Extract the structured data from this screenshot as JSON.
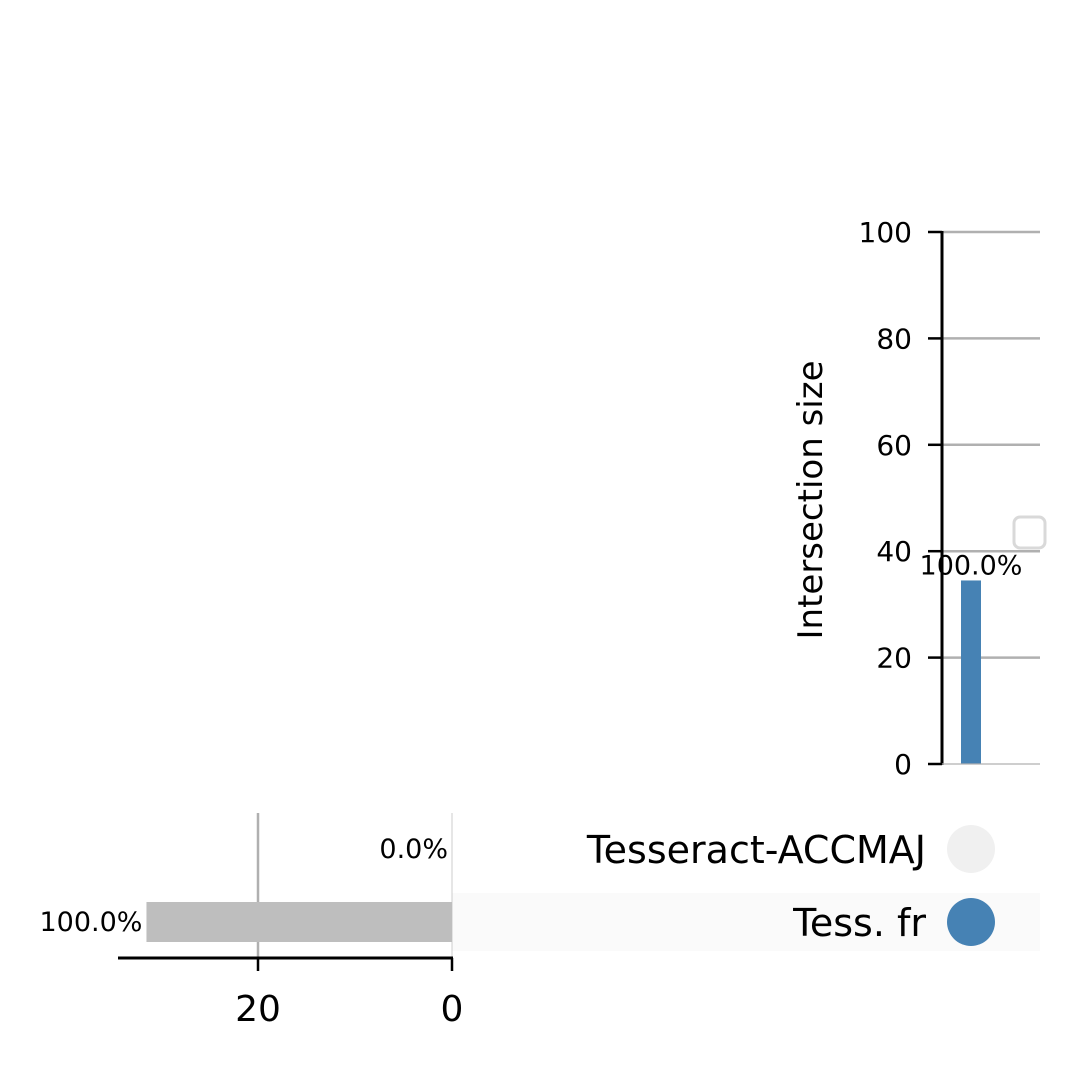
{
  "chart_data": {
    "type": "upset",
    "intersection_chart": {
      "ylabel": "Intersection size",
      "ylim": [
        0,
        100
      ],
      "yticks": [
        0,
        20,
        40,
        60,
        80,
        100
      ],
      "grid": true,
      "bars": [
        {
          "value": 34.5,
          "label": "100.0%",
          "members": [
            false,
            true
          ]
        }
      ]
    },
    "set_size_chart": {
      "xticks": [
        20,
        0
      ],
      "xlim": [
        0,
        32
      ],
      "sets": [
        {
          "name": "Tesseract-ACCMAJ",
          "value": 0,
          "label": "0.0%"
        },
        {
          "name": "Tess. fr",
          "value": 31.5,
          "label": "100.0%"
        }
      ]
    },
    "legend": {
      "placement": "right",
      "entries": []
    }
  },
  "colors": {
    "intersection_bar": "#4682b4",
    "active_dot": "#4682b4",
    "inactive_dot": "#f0f0f0",
    "set_bar": "#bebebe",
    "grid": "#b0b0b0",
    "row_shade": "#fafafa"
  }
}
